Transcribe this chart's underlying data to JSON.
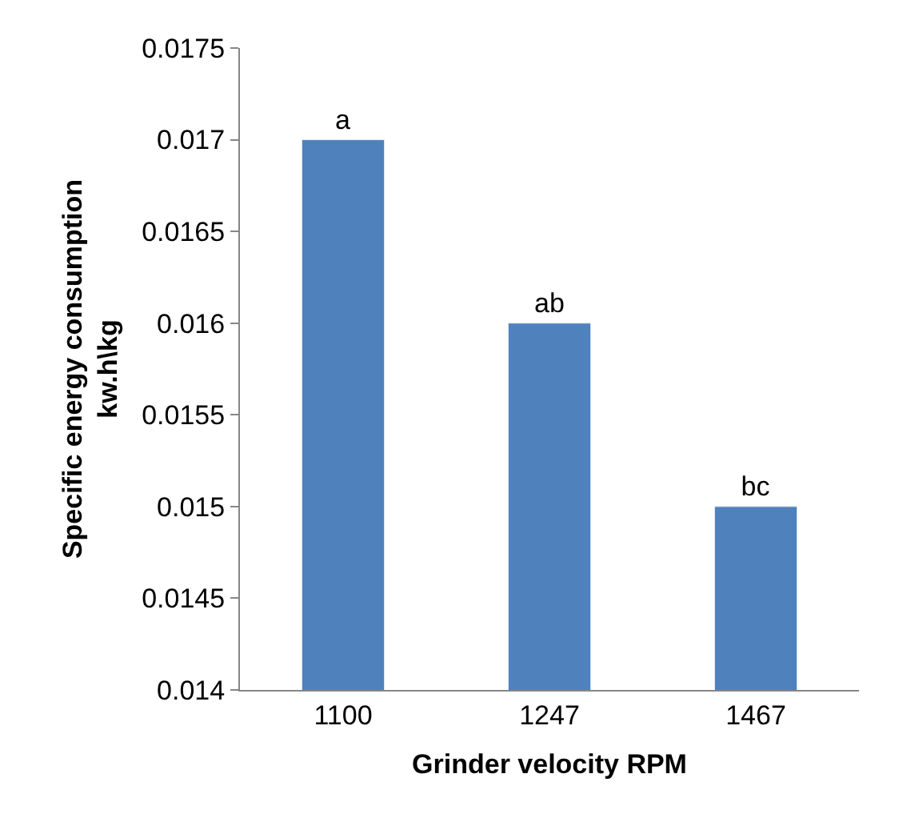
{
  "chart_data": {
    "type": "bar",
    "xlabel": "Grinder velocity RPM",
    "ylabel": "Specific energy consumption\nkw.h\\kg",
    "categories": [
      "1100",
      "1247",
      "1467"
    ],
    "values": [
      0.017,
      0.016,
      0.015
    ],
    "value_labels": [
      "a",
      "ab",
      "bc"
    ],
    "color": "#4f81bd",
    "ylim": [
      0.014,
      0.0175
    ],
    "yticks": [
      0.014,
      0.0145,
      0.015,
      0.0155,
      0.016,
      0.0165,
      0.017,
      0.0175
    ],
    "grid": false,
    "legend": false
  }
}
